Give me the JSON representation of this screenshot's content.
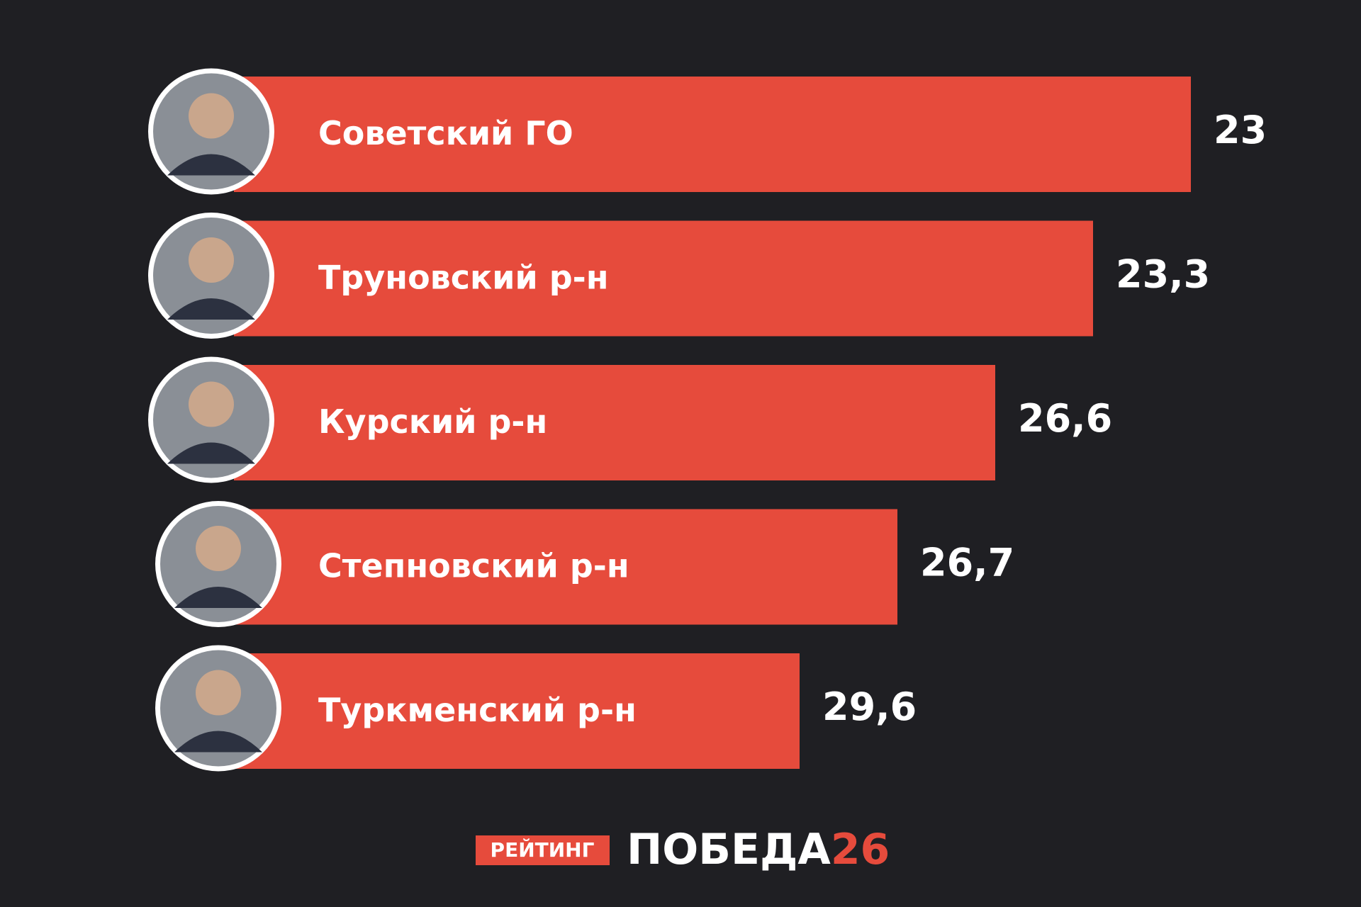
{
  "chart_data": {
    "type": "bar",
    "categories": [
      "Советский ГО",
      "Труновский р-н",
      "Курский р-н",
      "Степновский р-н",
      "Туркменский р-н"
    ],
    "values": [
      23,
      23.3,
      26.6,
      26.7,
      29.6
    ],
    "value_labels": [
      "23",
      "23,3",
      "26,6",
      "26,7",
      "29,6"
    ],
    "color": "#e64b3c"
  },
  "footer": {
    "tag": "РЕЙТИНГ",
    "brand": "ПОБЕДА",
    "brand_number": "26"
  }
}
